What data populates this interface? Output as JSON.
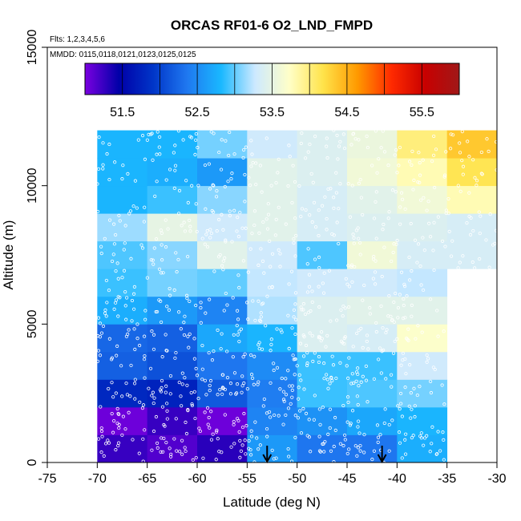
{
  "chart_data": {
    "type": "heatmap",
    "title": "ORCAS RF01-6 O2_LND_FMPD",
    "flights_note": "Flts: 1,2,3,4,5,6",
    "dates_note": "MMDD: 0115,0118,0121,0123,0125,0125",
    "xlabel": "Latitude (deg N)",
    "ylabel": "Altitude (m)",
    "xlim": [
      -75,
      -30
    ],
    "ylim": [
      0,
      15000
    ],
    "x_ticks": [
      -75,
      -70,
      -65,
      -60,
      -55,
      -50,
      -45,
      -40,
      -35,
      -30
    ],
    "x_tick_labels": [
      "-75",
      "-70",
      "-65",
      "-60",
      "-55",
      "-50",
      "-45",
      "-40",
      "-35",
      "-30"
    ],
    "y_ticks": [
      0,
      5000,
      10000,
      15000
    ],
    "y_tick_labels": [
      "0",
      "5000",
      "10000",
      "15000"
    ],
    "colorbar": {
      "min": 51.0,
      "max": 56.0,
      "ticks": [
        51.5,
        52.5,
        53.5,
        54.5,
        55.5
      ],
      "tick_labels": [
        "51.5",
        "52.5",
        "53.5",
        "54.5",
        "55.5"
      ],
      "segments": 10,
      "colors": [
        "#7a00e0",
        "#0000a8",
        "#0035c8",
        "#1f78f0",
        "#1ab8ff",
        "#cde9ff",
        "#ffffc8",
        "#ffe34a",
        "#ff9a00",
        "#ff2a00",
        "#c80000",
        "#a01818"
      ]
    },
    "bin_width_lat": 5,
    "bin_height_alt": 1000,
    "lat_bins_start": [
      -70,
      -65,
      -60,
      -55,
      -50,
      -45,
      -40,
      -35
    ],
    "alt_bins_start": [
      0,
      1000,
      2000,
      3000,
      4000,
      5000,
      6000,
      7000,
      8000,
      9000,
      10000,
      11000
    ],
    "grid_values": [
      [
        51.25,
        51.15,
        51.3,
        52.6,
        52.35,
        52.35,
        52.75,
        null
      ],
      [
        51.05,
        51.25,
        51.05,
        52.45,
        52.55,
        52.7,
        52.8,
        null
      ],
      [
        51.8,
        51.75,
        52.15,
        52.4,
        52.9,
        52.95,
        53.05,
        null
      ],
      [
        52.2,
        52.1,
        52.35,
        52.5,
        52.9,
        52.9,
        53.3,
        null
      ],
      [
        52.25,
        52.2,
        52.7,
        52.8,
        53.4,
        53.35,
        53.7,
        null
      ],
      [
        52.75,
        52.6,
        52.45,
        53.2,
        53.4,
        53.45,
        53.45,
        null
      ],
      [
        52.9,
        53.05,
        53.0,
        53.25,
        53.3,
        53.3,
        53.25,
        null
      ],
      [
        52.95,
        53.1,
        53.45,
        53.3,
        52.95,
        53.6,
        53.35,
        53.35
      ],
      [
        53.15,
        53.5,
        53.3,
        53.45,
        53.35,
        53.4,
        53.4,
        53.35
      ],
      [
        52.8,
        52.9,
        53.1,
        53.45,
        53.35,
        53.45,
        53.6,
        53.8
      ],
      [
        52.8,
        52.75,
        52.6,
        53.45,
        53.4,
        53.6,
        53.8,
        54.15
      ],
      [
        52.8,
        52.8,
        53.05,
        53.3,
        53.4,
        53.55,
        54.0,
        54.35
      ]
    ],
    "arrow_latitudes": [
      -53,
      -41.5
    ],
    "observation_point_count": 1400
  }
}
